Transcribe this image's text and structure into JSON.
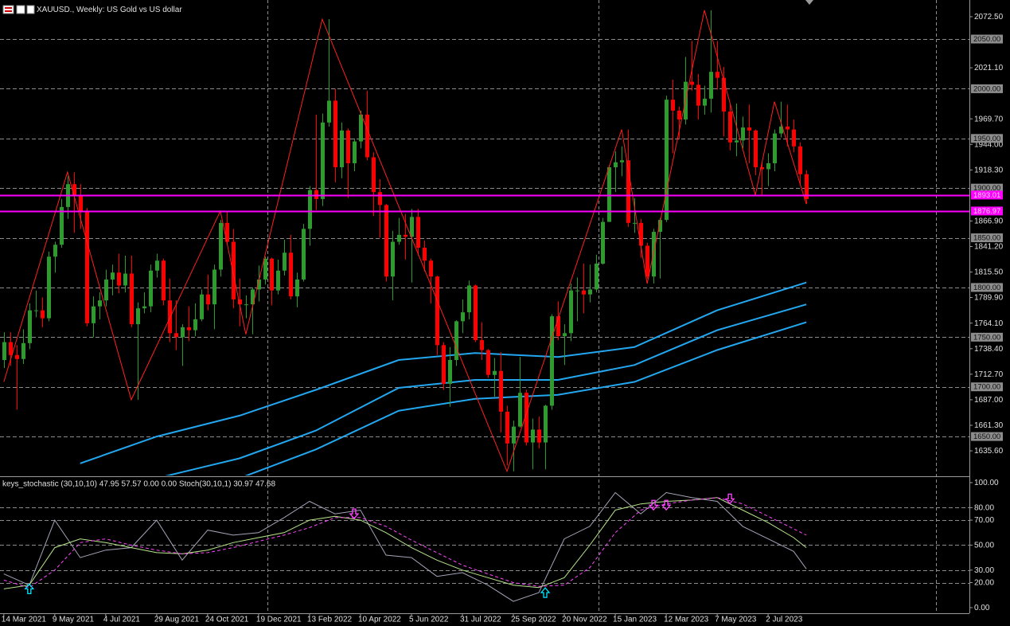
{
  "chart_data": [
    {
      "type": "candlestick",
      "title": "XAUUSD., Weekly: US Gold vs US dollar",
      "xlim": [
        -0.6,
        151.6
      ],
      "ylim": [
        1610.8,
        2089.3
      ],
      "xticks": [
        {
          "value": 0,
          "label": "14 Mar 2021"
        },
        {
          "value": 8,
          "label": "9 May 2021"
        },
        {
          "value": 16,
          "label": "4 Jul 2021"
        },
        {
          "value": 24,
          "label": "29 Aug 2021"
        },
        {
          "value": 32,
          "label": "24 Oct 2021"
        },
        {
          "value": 40,
          "label": "19 Dec 2021"
        },
        {
          "value": 48,
          "label": "13 Feb 2022"
        },
        {
          "value": 56,
          "label": "10 Apr 2022"
        },
        {
          "value": 64,
          "label": "5 Jun 2022"
        },
        {
          "value": 72,
          "label": "31 Jul 2022"
        },
        {
          "value": 80,
          "label": "25 Sep 2022"
        },
        {
          "value": 88,
          "label": "20 Nov 2022"
        },
        {
          "value": 96,
          "label": "15 Jan 2023"
        },
        {
          "value": 104,
          "label": "12 Mar 2023"
        },
        {
          "value": 112,
          "label": "7 May 2023"
        },
        {
          "value": 120,
          "label": "2 Jul 2023"
        }
      ],
      "yticks": [
        {
          "value": 2072.5,
          "label": "2072.50"
        },
        {
          "value": 2021.1,
          "label": "2021.10"
        },
        {
          "value": 1969.7,
          "label": "1969.70"
        },
        {
          "value": 1944,
          "label": "1944.00"
        },
        {
          "value": 1918.3,
          "label": "1918.30"
        },
        {
          "value": 1866.9,
          "label": "1866.90"
        },
        {
          "value": 1841.2,
          "label": "1841.20"
        },
        {
          "value": 1815.5,
          "label": "1815.50"
        },
        {
          "value": 1789.9,
          "label": "1789.90"
        },
        {
          "value": 1764.1,
          "label": "1764.10"
        },
        {
          "value": 1738.4,
          "label": "1738.40"
        },
        {
          "value": 1712.7,
          "label": "1712.70"
        },
        {
          "value": 1687,
          "label": "1687.00"
        },
        {
          "value": 1661.3,
          "label": "1661.30"
        },
        {
          "value": 1635.6,
          "label": "1635.60"
        }
      ],
      "levels": [
        {
          "value": 2050,
          "label": "2050.00"
        },
        {
          "value": 2000,
          "label": "2000.00"
        },
        {
          "value": 1950,
          "label": "1950.00"
        },
        {
          "value": 1900,
          "label": "1900.00"
        },
        {
          "value": 1850,
          "label": "1850.00"
        },
        {
          "value": 1800,
          "label": "1800.00"
        },
        {
          "value": 1750,
          "label": "1750.00"
        },
        {
          "value": 1700,
          "label": "1700.00"
        },
        {
          "value": 1650,
          "label": "1650.00"
        }
      ],
      "level_color": "#8c8c8c",
      "hlines": [
        {
          "value": 1893.01,
          "label": "1893.01"
        },
        {
          "value": 1876.97,
          "label": "1876.97"
        }
      ],
      "hline_color": "#ff00ff",
      "up_color": "#2e9b2e",
      "down_color": "#ff0000",
      "open": [
        1727,
        1745,
        1732,
        1728,
        1744,
        1777,
        1777,
        1769,
        1831,
        1843,
        1881,
        1904,
        1892,
        1877,
        1764,
        1781,
        1787,
        1808,
        1815,
        1802,
        1814,
        1763,
        1779,
        1781,
        1817,
        1827,
        1787,
        1754,
        1750,
        1760,
        1757,
        1768,
        1793,
        1783,
        1818,
        1865,
        1846,
        1788,
        1783,
        1783,
        1798,
        1808,
        1829,
        1797,
        1817,
        1835,
        1791,
        1808,
        1859,
        1898,
        1889,
        1966,
        1988,
        1921,
        1958,
        1925,
        1947,
        1974,
        1931,
        1896,
        1883,
        1811,
        1846,
        1853,
        1851,
        1871,
        1840,
        1827,
        1811,
        1742,
        1703,
        1727,
        1766,
        1775,
        1802,
        1747,
        1737,
        1712,
        1716,
        1675,
        1643,
        1660,
        1694,
        1644,
        1657,
        1644,
        1681,
        1771,
        1751,
        1754,
        1797,
        1797,
        1793,
        1798,
        1824,
        1866,
        1921,
        1926,
        1928,
        1865,
        1865,
        1842,
        1811,
        1856,
        1868,
        1989,
        1978,
        1969,
        2007,
        2004,
        1983,
        1990,
        2017,
        2011,
        1977,
        1946,
        1948,
        1961,
        1958,
        1921,
        1919,
        1925,
        1955,
        1962,
        1959,
        1942,
        1914
      ],
      "high": [
        1755,
        1755,
        1742,
        1758,
        1784,
        1797,
        1790,
        1836,
        1846,
        1889,
        1912,
        1916,
        1904,
        1880,
        1791,
        1795,
        1818,
        1823,
        1834,
        1832,
        1832,
        1785,
        1795,
        1823,
        1834,
        1829,
        1809,
        1787,
        1763,
        1781,
        1784,
        1798,
        1813,
        1823,
        1868,
        1877,
        1859,
        1809,
        1792,
        1800,
        1822,
        1831,
        1830,
        1828,
        1848,
        1853,
        1815,
        1864,
        1902,
        1974,
        1975,
        2070,
        2000,
        1966,
        1960,
        1950,
        1978,
        1998,
        1936,
        1909,
        1884,
        1857,
        1870,
        1874,
        1879,
        1879,
        1847,
        1829,
        1812,
        1745,
        1740,
        1767,
        1788,
        1807,
        1803,
        1765,
        1738,
        1729,
        1735,
        1681,
        1666,
        1730,
        1697,
        1668,
        1670,
        1682,
        1773,
        1786,
        1763,
        1804,
        1810,
        1824,
        1823,
        1833,
        1870,
        1923,
        1937,
        1942,
        1959,
        1890,
        1869,
        1845,
        1859,
        1870,
        1993,
        2009,
        1982,
        2032,
        2048,
        2015,
        2003,
        2079,
        2048,
        2022,
        1984,
        1985,
        1972,
        1984,
        1959,
        1926,
        1935,
        1959,
        1987,
        1984,
        1969,
        1946,
        1918
      ],
      "low": [
        1719,
        1721,
        1677,
        1723,
        1738,
        1770,
        1760,
        1766,
        1815,
        1840,
        1869,
        1855,
        1859,
        1761,
        1750,
        1768,
        1781,
        1792,
        1794,
        1795,
        1760,
        1687,
        1774,
        1775,
        1810,
        1782,
        1745,
        1737,
        1721,
        1746,
        1751,
        1766,
        1777,
        1758,
        1811,
        1843,
        1779,
        1761,
        1769,
        1753,
        1786,
        1803,
        1782,
        1793,
        1812,
        1788,
        1780,
        1806,
        1842,
        1878,
        1882,
        1962,
        1906,
        1910,
        1890,
        1917,
        1940,
        1928,
        1872,
        1850,
        1806,
        1787,
        1843,
        1828,
        1805,
        1832,
        1816,
        1784,
        1732,
        1697,
        1680,
        1721,
        1754,
        1768,
        1745,
        1727,
        1709,
        1690,
        1654,
        1621,
        1615,
        1659,
        1641,
        1617,
        1638,
        1617,
        1677,
        1747,
        1722,
        1746,
        1766,
        1774,
        1785,
        1795,
        1823,
        1866,
        1896,
        1912,
        1861,
        1855,
        1830,
        1809,
        1804,
        1809,
        1866,
        1935,
        1949,
        1964,
        1998,
        1969,
        1974,
        1976,
        1999,
        1952,
        1938,
        1932,
        1940,
        1925,
        1913,
        1893,
        1902,
        1917,
        1951,
        1942,
        1936,
        1903,
        1884
      ],
      "close": [
        1745,
        1732,
        1728,
        1744,
        1777,
        1777,
        1769,
        1831,
        1843,
        1881,
        1904,
        1892,
        1877,
        1764,
        1781,
        1787,
        1808,
        1815,
        1802,
        1814,
        1763,
        1779,
        1781,
        1817,
        1827,
        1787,
        1754,
        1750,
        1760,
        1757,
        1768,
        1793,
        1783,
        1818,
        1865,
        1846,
        1788,
        1783,
        1783,
        1798,
        1808,
        1829,
        1797,
        1817,
        1835,
        1791,
        1808,
        1859,
        1898,
        1889,
        1966,
        1988,
        1921,
        1958,
        1925,
        1947,
        1974,
        1931,
        1896,
        1883,
        1811,
        1846,
        1853,
        1851,
        1871,
        1840,
        1827,
        1811,
        1742,
        1703,
        1727,
        1766,
        1775,
        1802,
        1747,
        1737,
        1712,
        1716,
        1675,
        1643,
        1660,
        1694,
        1644,
        1657,
        1644,
        1681,
        1771,
        1751,
        1754,
        1797,
        1797,
        1793,
        1798,
        1824,
        1866,
        1921,
        1926,
        1928,
        1865,
        1865,
        1842,
        1811,
        1856,
        1868,
        1989,
        1978,
        1969,
        2007,
        2004,
        1983,
        1990,
        2017,
        2011,
        1977,
        1946,
        1948,
        1961,
        1958,
        1921,
        1919,
        1925,
        1955,
        1962,
        1959,
        1942,
        1914,
        1889
      ],
      "zigzag": {
        "color": "#ff2020",
        "x": [
          0,
          10,
          20,
          34,
          38,
          50,
          79,
          97,
          101,
          110,
          118,
          121,
          126
        ],
        "values": [
          1705,
          1916,
          1687,
          1877,
          1753,
          2070,
          1615,
          1959,
          1804,
          2079,
          1893,
          1987,
          1884
        ]
      },
      "bands": {
        "x": [
          12,
          24,
          37,
          49,
          62,
          74,
          87,
          99,
          112,
          126
        ],
        "series": [
          {
            "color": "#22a7f0",
            "values": [
              1623,
              1650,
              1671,
              1697,
              1727,
              1734,
              1730,
              1740,
              1777,
              1805
            ]
          },
          {
            "color": "#22a7f0",
            "values": [
              null,
              1608,
              1628,
              1656,
              1699,
              1707,
              1707,
              1722,
              1757,
              1783
            ]
          },
          {
            "color": "#22a7f0",
            "values": [
              null,
              null,
              1608,
              1637,
              1676,
              1688,
              1692,
              1705,
              1737,
              1765
            ]
          }
        ]
      }
    },
    {
      "type": "line",
      "title": "keys_stochastic (30,10,10) 47.95 57.57 0.00 0.00 Stoch(30,10,1) 30.97 47.68",
      "xlim": [
        -0.6,
        151.6
      ],
      "ylim": [
        -4.5,
        103.8
      ],
      "yticks": [
        {
          "value": 100,
          "label": "100.00"
        },
        {
          "value": 80,
          "label": "80.00"
        },
        {
          "value": 70,
          "label": "70.00"
        },
        {
          "value": 50,
          "label": "50.00"
        },
        {
          "value": 30,
          "label": "30.00"
        },
        {
          "value": 20,
          "label": "20.00"
        },
        {
          "value": 0,
          "label": "0.00"
        }
      ],
      "x": [
        0,
        4,
        8,
        12,
        16,
        20,
        24,
        28,
        32,
        36,
        40,
        44,
        48,
        52,
        56,
        60,
        64,
        68,
        72,
        76,
        80,
        84,
        88,
        92,
        96,
        100,
        104,
        108,
        112,
        116,
        120,
        124,
        126
      ],
      "series": [
        {
          "color": "#a4a4b8",
          "dashed": false,
          "values": [
            27,
            18,
            70,
            40,
            46,
            48,
            70,
            38,
            62,
            58,
            60,
            72,
            85,
            75,
            78,
            42,
            40,
            25,
            28,
            18,
            5,
            12,
            55,
            65,
            92,
            75,
            92,
            88,
            85,
            65,
            55,
            45,
            31
          ]
        },
        {
          "color": "#b8e68c",
          "dashed": false,
          "values": [
            15,
            18,
            48,
            55,
            52,
            48,
            44,
            43,
            46,
            52,
            56,
            60,
            70,
            73,
            70,
            60,
            48,
            38,
            30,
            24,
            18,
            16,
            24,
            50,
            78,
            83,
            85,
            86,
            88,
            78,
            68,
            56,
            48
          ]
        },
        {
          "color": "#ff44ff",
          "dashed": true,
          "values": [
            22,
            16,
            30,
            52,
            55,
            50,
            46,
            43,
            44,
            48,
            53,
            58,
            64,
            72,
            72,
            65,
            54,
            44,
            34,
            27,
            20,
            17,
            18,
            32,
            60,
            78,
            83,
            86,
            88,
            83,
            73,
            63,
            58
          ]
        }
      ],
      "up_arrows": {
        "color": "#00e5ff",
        "x": [
          4,
          85
        ],
        "values": [
          15,
          12
        ]
      },
      "down_arrows": {
        "color": "#ff44ff",
        "x": [
          55,
          102,
          104,
          114
        ],
        "values": [
          75,
          82,
          82,
          87
        ]
      }
    }
  ]
}
